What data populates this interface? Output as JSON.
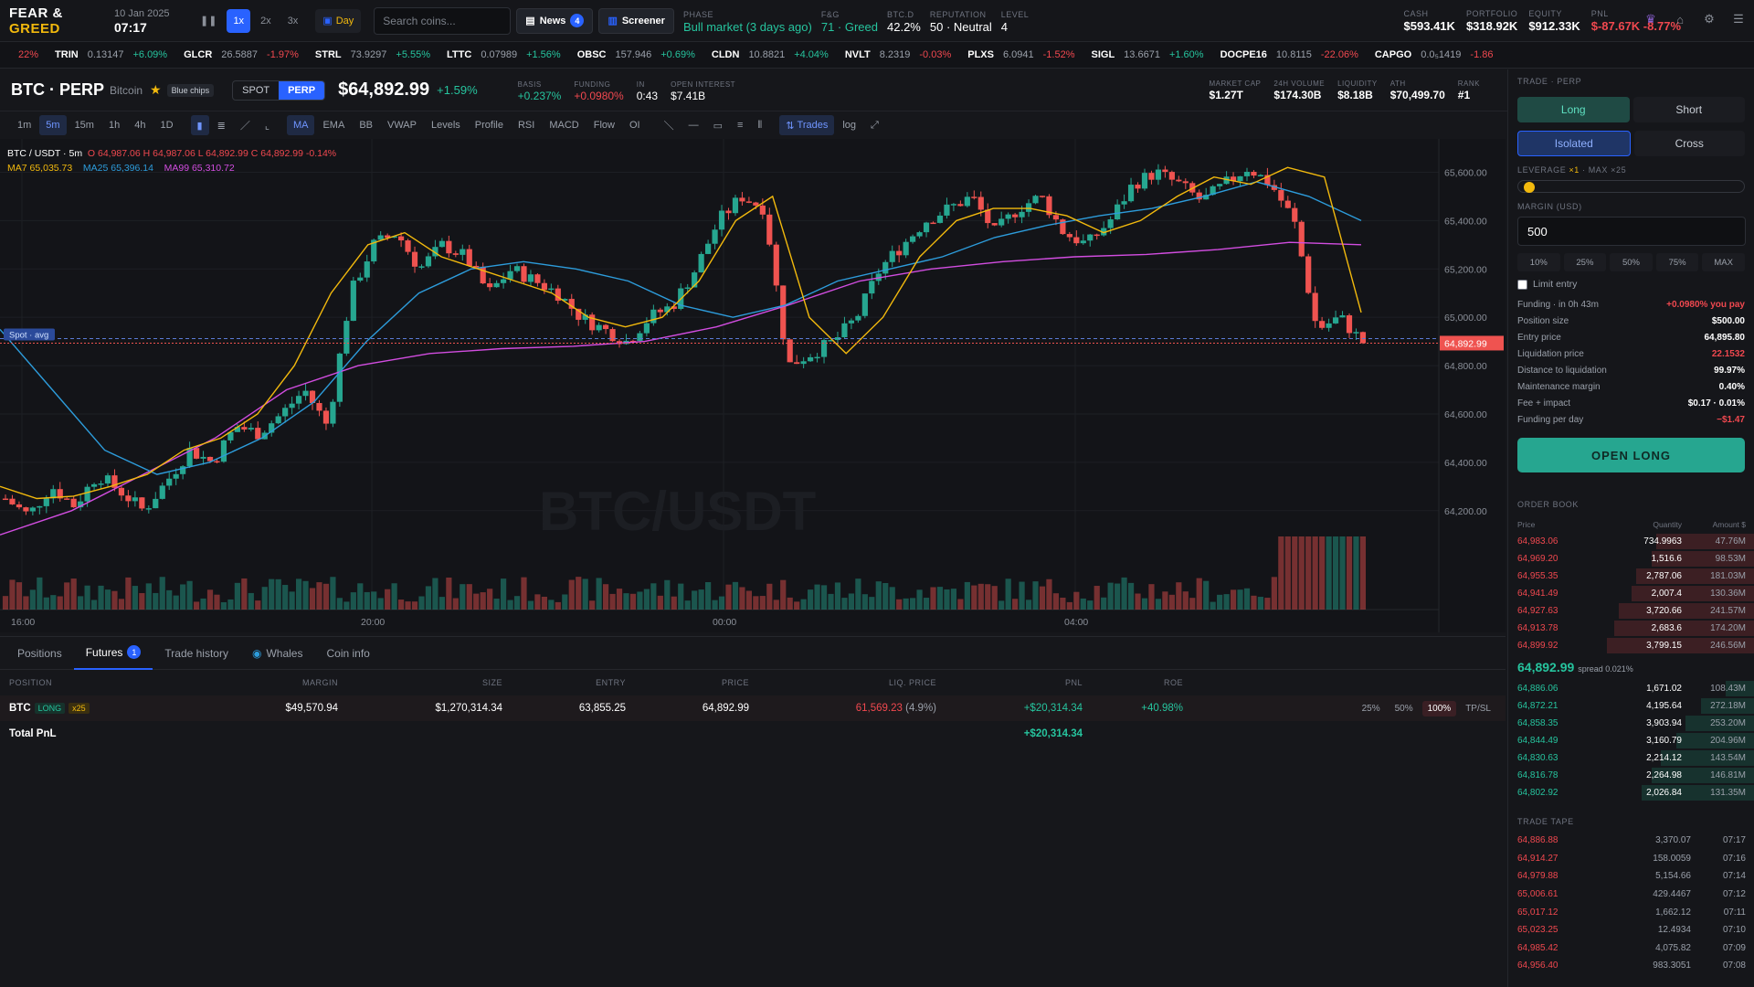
{
  "top": {
    "logo_a": "FEAR",
    "logo_amp": "&",
    "logo_b": "GREED",
    "date": "10 Jan 2025",
    "time": "07:17",
    "speeds": [
      "1x",
      "2x",
      "3x"
    ],
    "day_label": "Day",
    "search_placeholder": "Search coins...",
    "news_label": "News",
    "news_count": "4",
    "screener_label": "Screener",
    "stats": [
      {
        "label": "PHASE",
        "value": "Bull market (3 days ago)",
        "color": "green"
      },
      {
        "label": "F&G",
        "value": "71 · Greed",
        "color": "green"
      },
      {
        "label": "BTC.D",
        "value": "42.2%",
        "color": ""
      },
      {
        "label": "REPUTATION",
        "value": "50 · Neutral",
        "color": ""
      },
      {
        "label": "LEVEL",
        "value": "4",
        "color": ""
      }
    ],
    "right_stats": [
      {
        "label": "CASH",
        "value": "$593.41K",
        "color": ""
      },
      {
        "label": "PORTFOLIO",
        "value": "$318.92K",
        "color": ""
      },
      {
        "label": "EQUITY",
        "value": "$912.33K",
        "color": ""
      },
      {
        "label": "PNL",
        "value": "$-87.67K -8.77%",
        "color": "red"
      }
    ]
  },
  "ticker": [
    {
      "sym": "",
      "price": "",
      "chg": "22%",
      "dir": "neg"
    },
    {
      "sym": "TRIN",
      "price": "0.13147",
      "chg": "+6.09%",
      "dir": "pos"
    },
    {
      "sym": "GLCR",
      "price": "26.5887",
      "chg": "-1.97%",
      "dir": "neg"
    },
    {
      "sym": "STRL",
      "price": "73.9297",
      "chg": "+5.55%",
      "dir": "pos"
    },
    {
      "sym": "LTTC",
      "price": "0.07989",
      "chg": "+1.56%",
      "dir": "pos"
    },
    {
      "sym": "OBSC",
      "price": "157.946",
      "chg": "+0.69%",
      "dir": "pos"
    },
    {
      "sym": "CLDN",
      "price": "10.8821",
      "chg": "+4.04%",
      "dir": "pos"
    },
    {
      "sym": "NVLT",
      "price": "8.2319",
      "chg": "-0.03%",
      "dir": "neg"
    },
    {
      "sym": "PLXS",
      "price": "6.0941",
      "chg": "-1.52%",
      "dir": "neg"
    },
    {
      "sym": "SIGL",
      "price": "13.6671",
      "chg": "+1.60%",
      "dir": "pos"
    },
    {
      "sym": "DOCPE16",
      "price": "10.8115",
      "chg": "-22.06%",
      "dir": "neg"
    },
    {
      "sym": "CAPGO",
      "price": "0.0₅1419",
      "chg": "-1.86",
      "dir": "neg"
    }
  ],
  "header": {
    "pair": "BTC · PERP",
    "name": "Bitcoin",
    "chip": "Blue chips",
    "spot": "SPOT",
    "perp": "PERP",
    "price": "$64,892.99",
    "change": "+1.59%",
    "stats": [
      {
        "label": "BASIS",
        "value": "+0.237%",
        "color": "green"
      },
      {
        "label": "FUNDING",
        "value": "+0.0980%",
        "color": "red"
      },
      {
        "label": "IN",
        "value": "0:43",
        "color": ""
      },
      {
        "label": "OPEN INTEREST",
        "value": "$7.41B",
        "color": ""
      }
    ],
    "right": [
      {
        "label": "MARKET CAP",
        "value": "$1.27T"
      },
      {
        "label": "24H VOLUME",
        "value": "$174.30B"
      },
      {
        "label": "LIQUIDITY",
        "value": "$8.18B"
      },
      {
        "label": "ATH",
        "value": "$70,499.70"
      },
      {
        "label": "RANK",
        "value": "#1"
      }
    ]
  },
  "toolbar": {
    "intervals": [
      "1m",
      "5m",
      "15m",
      "1h",
      "4h",
      "1D"
    ],
    "indicators": [
      "MA",
      "EMA",
      "BB",
      "VWAP",
      "Levels",
      "Profile",
      "RSI",
      "MACD",
      "Flow",
      "OI"
    ],
    "trades": "Trades",
    "log": "log"
  },
  "legend": {
    "pair": "BTC / USDT · 5m",
    "ohlc": "O 64,987.06  H 64,987.06  L 64,892.99  C 64,892.99  -0.14%",
    "ma7": "MA7 65,035.73",
    "ma25": "MA25 65,396.14",
    "ma99": "MA99 65,310.72",
    "spot_avg": "Spot · avg",
    "watermark": "BTC/USDT",
    "price_tag": "64,892.99"
  },
  "chart_data": {
    "type": "candlestick",
    "x_labels": [
      "16:00",
      "20:00",
      "00:00",
      "04:00"
    ],
    "y_ticks": [
      "65,600.00",
      "65,400.00",
      "65,200.00",
      "65,000.00",
      "64,800.00",
      "64,600.00",
      "64,400.00",
      "64,200.00"
    ],
    "ylim": [
      64150,
      65700
    ],
    "last_price": 64892.99,
    "close_path": [
      64250,
      64180,
      64300,
      64220,
      64350,
      64280,
      64200,
      64320,
      64450,
      64400,
      64550,
      64520,
      64600,
      64700,
      64550,
      65100,
      65300,
      65350,
      65200,
      65300,
      65250,
      65100,
      65200,
      65150,
      65100,
      65000,
      64950,
      64900,
      65000,
      65050,
      65200,
      65400,
      65500,
      65450,
      64800,
      64850,
      64900,
      65000,
      65200,
      65300,
      65400,
      65450,
      65500,
      65350,
      65450,
      65500,
      65350,
      65300,
      65400,
      65550,
      65600,
      65550,
      65480,
      65550,
      65620,
      65550,
      65400,
      64950,
      65000,
      64893
    ],
    "ma7": [
      64300,
      64250,
      64260,
      64300,
      64350,
      64450,
      64500,
      64600,
      64800,
      65100,
      65300,
      65350,
      65250,
      65200,
      65150,
      65100,
      65000,
      64960,
      65000,
      65150,
      65400,
      65500,
      65000,
      64850,
      65000,
      65250,
      65400,
      65450,
      65450,
      65420,
      65350,
      65400,
      65500,
      65580,
      65550,
      65620,
      65580,
      65020
    ],
    "ma25": [
      64950,
      64700,
      64450,
      64350,
      64400,
      64500,
      64650,
      64900,
      65100,
      65200,
      65230,
      65200,
      65150,
      65050,
      65000,
      65050,
      65150,
      65200,
      65250,
      65330,
      65380,
      65420,
      65450,
      65500,
      65560,
      65500,
      65400
    ],
    "ma99": [
      64100,
      64200,
      64350,
      64500,
      64700,
      64800,
      64850,
      64870,
      64880,
      64900,
      64960,
      65050,
      65150,
      65200,
      65230,
      65250,
      65260,
      65280,
      65310,
      65300
    ]
  },
  "bottom": {
    "tabs": [
      "Positions",
      "Futures",
      "Trade history",
      "Whales",
      "Coin info"
    ],
    "futures_count": "1",
    "headers": [
      "POSITION",
      "MARGIN",
      "SIZE",
      "ENTRY",
      "PRICE",
      "LIQ. PRICE",
      "PNL",
      "ROE"
    ],
    "row": {
      "sym": "BTC",
      "side": "LONG",
      "lev": "x25",
      "margin": "$49,570.94",
      "size": "$1,270,314.34",
      "entry": "63,855.25",
      "price": "64,892.99",
      "liq": "61,569.23",
      "liq_pct": "(4.9%)",
      "pnl": "+$20,314.34",
      "roe": "+40.98%"
    },
    "close_pcts": [
      "25%",
      "50%",
      "100%"
    ],
    "tpsl": "TP/SL",
    "total_label": "Total PnL",
    "total_value": "+$20,314.34"
  },
  "side": {
    "title": "TRADE · PERP",
    "long": "Long",
    "short": "Short",
    "isolated": "Isolated",
    "cross": "Cross",
    "leverage_label": "LEVERAGE",
    "leverage_value": "×1",
    "leverage_max": "· MAX ×25",
    "margin_label": "MARGIN (USD)",
    "margin_value": "500",
    "pcts": [
      "10%",
      "25%",
      "50%",
      "75%",
      "MAX"
    ],
    "limit_entry": "Limit entry",
    "info": [
      {
        "k": "Funding · in 0h 43m",
        "v": "+0.0980% you pay",
        "c": "red"
      },
      {
        "k": "Position size",
        "v": "$500.00",
        "c": ""
      },
      {
        "k": "Entry price",
        "v": "64,895.80",
        "c": ""
      },
      {
        "k": "Liquidation price",
        "v": "22.1532",
        "c": "red"
      },
      {
        "k": "Distance to liquidation",
        "v": "99.97%",
        "c": ""
      },
      {
        "k": "Maintenance margin",
        "v": "0.40%",
        "c": ""
      },
      {
        "k": "Fee + impact",
        "v": "$0.17 · 0.01%",
        "c": ""
      },
      {
        "k": "Funding per day",
        "v": "−$1.47",
        "c": "red"
      }
    ],
    "open_btn": "OPEN LONG",
    "orderbook_title": "ORDER BOOK",
    "ob_headers": [
      "Price",
      "Quantity",
      "Amount $"
    ],
    "asks": [
      {
        "p": "64,983.06",
        "q": "734.9963",
        "a": "47.76M",
        "w": 0.4
      },
      {
        "p": "64,969.20",
        "q": "1,516.6",
        "a": "98.53M",
        "w": 0.42
      },
      {
        "p": "64,955.35",
        "q": "2,787.06",
        "a": "181.03M",
        "w": 0.48
      },
      {
        "p": "64,941.49",
        "q": "2,007.4",
        "a": "130.36M",
        "w": 0.5
      },
      {
        "p": "64,927.63",
        "q": "3,720.66",
        "a": "241.57M",
        "w": 0.55
      },
      {
        "p": "64,913.78",
        "q": "2,683.6",
        "a": "174.20M",
        "w": 0.57
      },
      {
        "p": "64,899.92",
        "q": "3,799.15",
        "a": "246.56M",
        "w": 0.6
      }
    ],
    "mid_price": "64,892.99",
    "spread": "spread 0.021%",
    "bids": [
      {
        "p": "64,886.06",
        "q": "1,671.02",
        "a": "108.43M",
        "w": 0.12
      },
      {
        "p": "64,872.21",
        "q": "4,195.64",
        "a": "272.18M",
        "w": 0.22
      },
      {
        "p": "64,858.35",
        "q": "3,903.94",
        "a": "253.20M",
        "w": 0.28
      },
      {
        "p": "64,844.49",
        "q": "3,160.79",
        "a": "204.96M",
        "w": 0.32
      },
      {
        "p": "64,830.63",
        "q": "2,214.12",
        "a": "143.54M",
        "w": 0.38
      },
      {
        "p": "64,816.78",
        "q": "2,264.98",
        "a": "146.81M",
        "w": 0.42
      },
      {
        "p": "64,802.92",
        "q": "2,026.84",
        "a": "131.35M",
        "w": 0.46
      }
    ],
    "tape_title": "TRADE TAPE",
    "tape": [
      {
        "p": "64,886.88",
        "q": "3,370.07",
        "t": "07:17"
      },
      {
        "p": "64,914.27",
        "q": "158.0059",
        "t": "07:16"
      },
      {
        "p": "64,979.88",
        "q": "5,154.66",
        "t": "07:14"
      },
      {
        "p": "65,006.61",
        "q": "429.4467",
        "t": "07:12"
      },
      {
        "p": "65,017.12",
        "q": "1,662.12",
        "t": "07:11"
      },
      {
        "p": "65,023.25",
        "q": "12.4934",
        "t": "07:10"
      },
      {
        "p": "64,985.42",
        "q": "4,075.82",
        "t": "07:09"
      },
      {
        "p": "64,956.40",
        "q": "983.3051",
        "t": "07:08"
      }
    ]
  }
}
